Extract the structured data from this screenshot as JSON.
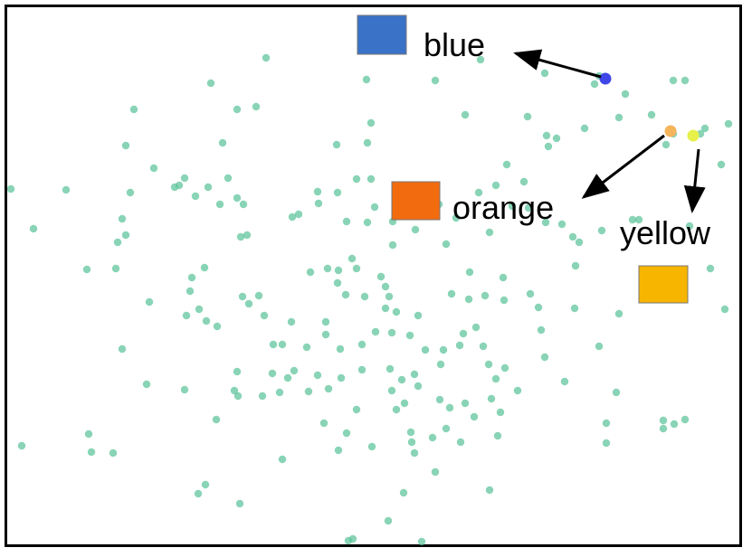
{
  "colors": {
    "point": "#5cc49a",
    "blue": "#3a72c8",
    "orange": "#f26b0f",
    "yellow": "#f7b500",
    "blue_dot": "#3f47e6",
    "orange_dot": "#f5b55a",
    "yellow_dot": "#e8f04a",
    "arrow": "#000000",
    "frame": "#000000"
  },
  "legend": {
    "blue": "blue",
    "orange": "orange",
    "yellow": "yellow"
  },
  "highlight_points": {
    "blue": "blue",
    "orange": "orange",
    "yellow": "yellow"
  }
}
